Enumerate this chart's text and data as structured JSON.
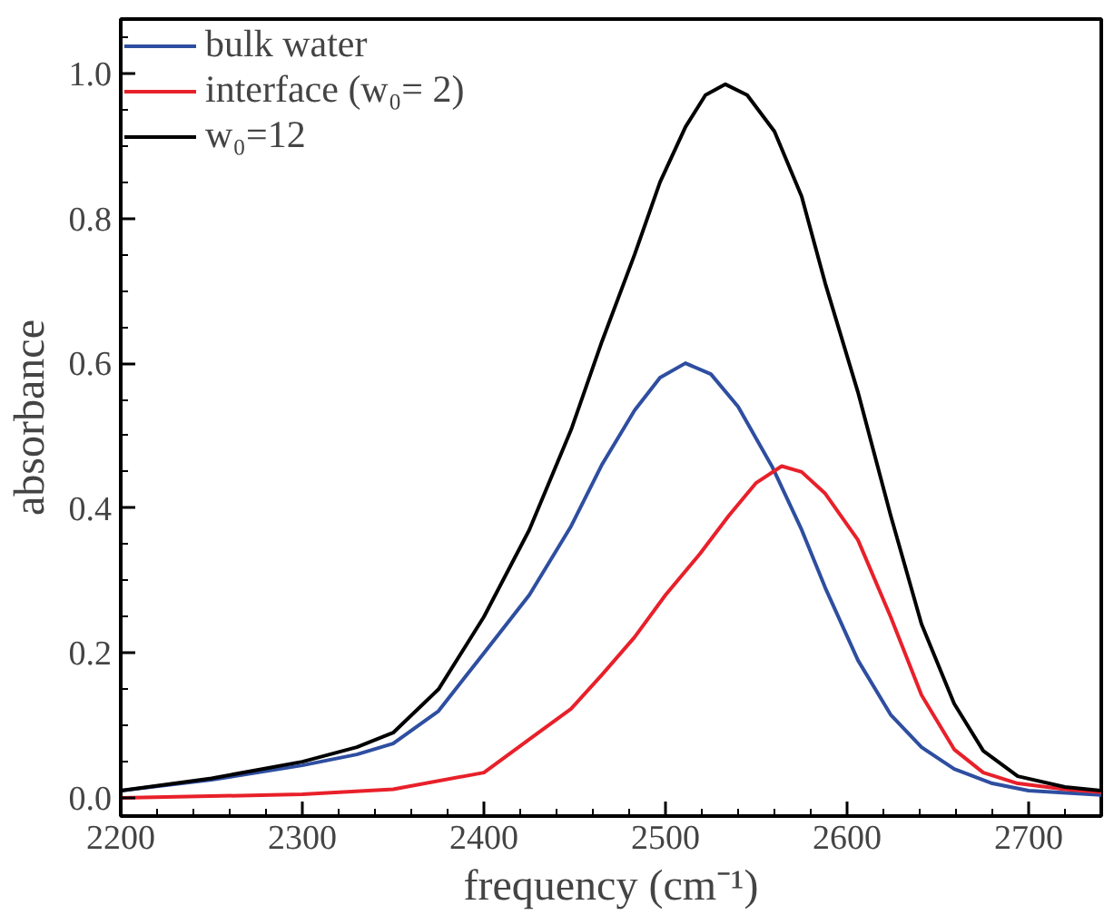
{
  "chart_data": {
    "type": "line",
    "xlabel": "frequency (cm⁻¹)",
    "ylabel": "absorbance",
    "xlim": [
      2200,
      2740
    ],
    "ylim": [
      -0.025,
      1.075
    ],
    "xticks": [
      2200,
      2300,
      2400,
      2500,
      2600,
      2700
    ],
    "yticks": [
      {
        "value": 0,
        "label": "0.0"
      },
      {
        "value": 0.2,
        "label": "0.2"
      },
      {
        "value": 0.4,
        "label": "0.4"
      },
      {
        "value": 0.6,
        "label": "0.6"
      },
      {
        "value": 0.8,
        "label": "0.8"
      },
      {
        "value": 1.0,
        "label": "1.0"
      }
    ],
    "grid": false,
    "legend": "top left",
    "line_style": "solid",
    "marker": "none",
    "series": [
      {
        "name": "bulk water",
        "color": "#2e4ea0",
        "x": [
          2200,
          2250,
          2300,
          2330,
          2350,
          2375,
          2400,
          2425,
          2448,
          2465,
          2483,
          2497,
          2511,
          2525,
          2540,
          2559,
          2575,
          2588,
          2606,
          2624,
          2641,
          2659,
          2680,
          2700,
          2740
        ],
        "values": [
          0.01,
          0.025,
          0.045,
          0.06,
          0.075,
          0.12,
          0.2,
          0.28,
          0.375,
          0.46,
          0.535,
          0.58,
          0.6,
          0.585,
          0.54,
          0.456,
          0.37,
          0.29,
          0.19,
          0.115,
          0.07,
          0.04,
          0.02,
          0.01,
          0.004
        ]
      },
      {
        "name": "interface (w₀= 2)",
        "color": "#e8202a",
        "x": [
          2200,
          2300,
          2350,
          2400,
          2430,
          2448,
          2465,
          2483,
          2500,
          2519,
          2535,
          2550,
          2564,
          2575,
          2588,
          2606,
          2624,
          2641,
          2659,
          2675,
          2694,
          2720,
          2740
        ],
        "values": [
          0.0,
          0.005,
          0.012,
          0.035,
          0.09,
          0.123,
          0.17,
          0.222,
          0.28,
          0.337,
          0.39,
          0.435,
          0.458,
          0.45,
          0.42,
          0.356,
          0.25,
          0.142,
          0.067,
          0.035,
          0.02,
          0.012,
          0.008
        ]
      },
      {
        "name": "w₀=12",
        "color": "#000000",
        "x": [
          2200,
          2250,
          2300,
          2330,
          2350,
          2375,
          2400,
          2425,
          2448,
          2465,
          2483,
          2497,
          2511,
          2522,
          2533,
          2545,
          2560,
          2575,
          2588,
          2606,
          2624,
          2641,
          2659,
          2675,
          2694,
          2720,
          2740
        ],
        "values": [
          0.01,
          0.027,
          0.05,
          0.07,
          0.09,
          0.15,
          0.25,
          0.37,
          0.508,
          0.63,
          0.75,
          0.85,
          0.926,
          0.97,
          0.985,
          0.97,
          0.92,
          0.83,
          0.71,
          0.56,
          0.39,
          0.24,
          0.13,
          0.065,
          0.03,
          0.015,
          0.01
        ]
      }
    ]
  }
}
